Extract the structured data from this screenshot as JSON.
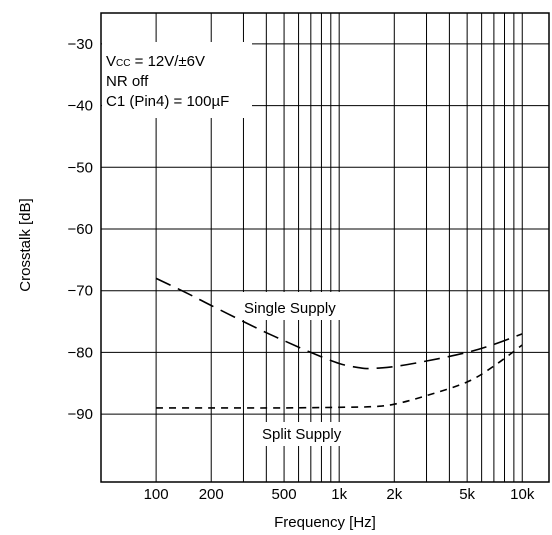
{
  "chart_data": {
    "type": "line",
    "title": "",
    "xlabel": "Frequency [Hz]",
    "ylabel": "Crosstalk [dB]",
    "x_scale": "log",
    "xlim": [
      50,
      14000
    ],
    "ylim": [
      -101,
      -25
    ],
    "grid": true,
    "x_ticks": [
      100,
      200,
      500,
      1000,
      2000,
      5000,
      10000
    ],
    "x_tick_labels": [
      "100",
      "200",
      "500",
      "1k",
      "2k",
      "5k",
      "10k"
    ],
    "x_grid": [
      100,
      200,
      300,
      400,
      500,
      600,
      700,
      800,
      900,
      1000,
      2000,
      3000,
      4000,
      5000,
      6000,
      7000,
      8000,
      9000,
      10000
    ],
    "y_ticks": [
      -30,
      -40,
      -50,
      -60,
      -70,
      -80,
      -90
    ],
    "y_tick_labels": [
      "−30",
      "−40",
      "−50",
      "−60",
      "−70",
      "−80",
      "−90"
    ],
    "y_grid": [
      -30,
      -40,
      -50,
      -60,
      -70,
      -80,
      -90
    ],
    "annotations": {
      "vcc_main": "V",
      "vcc_sub": "CC",
      "vcc_value": " = 12V/±6V",
      "nr": "NR off",
      "c1": "C1 (Pin4) = 100µF"
    },
    "series": [
      {
        "name": "Single Supply",
        "dash": "long",
        "x": [
          100,
          150,
          200,
          300,
          400,
          500,
          700,
          1000,
          1300,
          1500,
          2000,
          3000,
          5000,
          7000,
          10000
        ],
        "y": [
          -68,
          -70.5,
          -72.4,
          -75,
          -76.8,
          -78.1,
          -80.0,
          -81.8,
          -82.5,
          -82.6,
          -82.3,
          -81.4,
          -80.0,
          -78.7,
          -77.0
        ]
      },
      {
        "name": "Split Supply",
        "dash": "short",
        "x": [
          100,
          200,
          500,
          1000,
          1500,
          2000,
          3000,
          5000,
          7000,
          10000
        ],
        "y": [
          -89,
          -89,
          -89,
          -88.9,
          -88.8,
          -88.4,
          -87.0,
          -84.8,
          -82.2,
          -78.8
        ]
      }
    ]
  }
}
